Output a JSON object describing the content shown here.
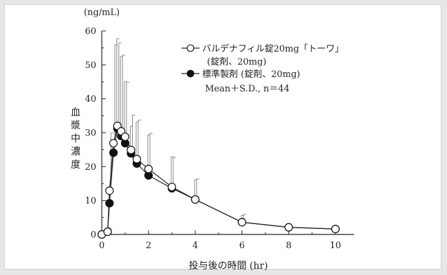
{
  "chart_data": {
    "type": "line",
    "ylabel": "血漿中濃度",
    "yunit": "(ng/mL)",
    "xlabel": "投与後の時間 (hr)",
    "xlim": [
      0,
      10.8
    ],
    "ylim": [
      0,
      60
    ],
    "xticks": [
      0,
      2,
      4,
      6,
      8,
      10
    ],
    "yticks": [
      0,
      10,
      20,
      30,
      40,
      50,
      60
    ],
    "legend_position": "top-right",
    "legend_extra": "Mean＋S.D., n＝44",
    "series": [
      {
        "name": "バルデナフィル錠20mg「トーワ」",
        "name_line2": "(錠剤、20mg)",
        "marker": "open-circle",
        "x": [
          0,
          0.25,
          0.33,
          0.5,
          0.67,
          0.83,
          1.0,
          1.25,
          1.5,
          2.0,
          3.0,
          4.0,
          6.0,
          8.0,
          10.0
        ],
        "y": [
          0,
          0.8,
          12.9,
          26.9,
          32.0,
          30.4,
          28.8,
          24.9,
          22.2,
          19.3,
          14.0,
          10.3,
          3.6,
          2.1,
          1.6
        ],
        "sd": [
          0,
          1.0,
          17.0,
          29.0,
          24.5,
          22.5,
          16.0,
          10.3,
          11.5,
          10.5,
          8.7,
          6.1,
          2.3,
          0,
          0
        ]
      },
      {
        "name": "標準製剤 (錠剤、20mg)",
        "marker": "filled-circle",
        "x": [
          0,
          0.25,
          0.33,
          0.5,
          0.67,
          0.83,
          1.0,
          1.25,
          1.5,
          2.0,
          3.0,
          4.0,
          6.0,
          8.0,
          10.0
        ],
        "y": [
          0,
          0.8,
          9.2,
          24.1,
          31.2,
          29.0,
          26.9,
          23.9,
          20.9,
          17.4,
          13.6,
          10.3,
          3.6,
          2.1,
          1.6
        ],
        "sd": [
          0,
          1.2,
          0,
          0,
          26.5,
          23.5,
          18.2,
          8.0,
          12.3,
          12.0,
          9.3,
          5.8,
          2.0,
          0,
          0
        ]
      }
    ]
  }
}
